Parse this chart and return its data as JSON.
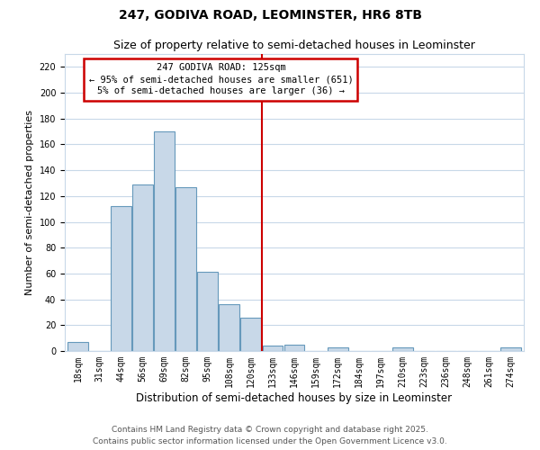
{
  "title": "247, GODIVA ROAD, LEOMINSTER, HR6 8TB",
  "subtitle": "Size of property relative to semi-detached houses in Leominster",
  "xlabel": "Distribution of semi-detached houses by size in Leominster",
  "ylabel": "Number of semi-detached properties",
  "bin_labels": [
    "18sqm",
    "31sqm",
    "44sqm",
    "56sqm",
    "69sqm",
    "82sqm",
    "95sqm",
    "108sqm",
    "120sqm",
    "133sqm",
    "146sqm",
    "159sqm",
    "172sqm",
    "184sqm",
    "197sqm",
    "210sqm",
    "223sqm",
    "236sqm",
    "248sqm",
    "261sqm",
    "274sqm"
  ],
  "bar_heights": [
    7,
    0,
    112,
    129,
    170,
    127,
    61,
    36,
    26,
    4,
    5,
    0,
    3,
    0,
    0,
    3,
    0,
    0,
    0,
    0,
    3
  ],
  "bar_color": "#c8d8e8",
  "bar_edge_color": "#6699bb",
  "grid_color": "#c8d8e8",
  "background_color": "#ffffff",
  "property_line_x": 8.5,
  "property_label": "247 GODIVA ROAD: 125sqm",
  "annotation_line1": "← 95% of semi-detached houses are smaller (651)",
  "annotation_line2": "5% of semi-detached houses are larger (36) →",
  "annotation_box_color": "#ffffff",
  "annotation_border_color": "#cc0000",
  "vline_color": "#cc0000",
  "ylim": [
    0,
    230
  ],
  "yticks": [
    0,
    20,
    40,
    60,
    80,
    100,
    120,
    140,
    160,
    180,
    200,
    220
  ],
  "footer_line1": "Contains HM Land Registry data © Crown copyright and database right 2025.",
  "footer_line2": "Contains public sector information licensed under the Open Government Licence v3.0.",
  "title_fontsize": 10,
  "subtitle_fontsize": 9,
  "xlabel_fontsize": 8.5,
  "ylabel_fontsize": 8,
  "tick_fontsize": 7,
  "footer_fontsize": 6.5,
  "ann_fontsize": 7.5
}
